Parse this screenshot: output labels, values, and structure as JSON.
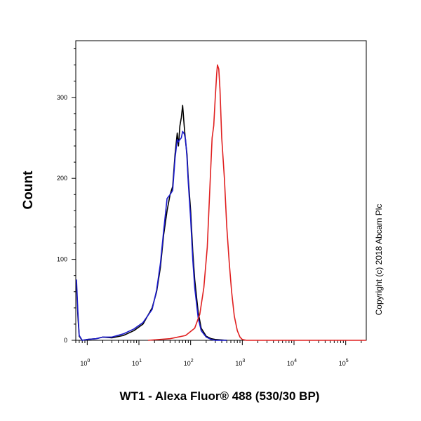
{
  "chart_data": {
    "type": "line",
    "xlabel": "WT1 - Alexa Fluor® 488 (530/30 BP)",
    "ylabel": "Count",
    "x_scale": "log",
    "xlim": [
      0.6,
      250000
    ],
    "ylim": [
      0,
      370
    ],
    "grid": false,
    "annotations": [
      "Copyright (c) 2018 Abcam Plc"
    ],
    "x_tick_labels": [
      {
        "base": "10",
        "exp": "0",
        "value": 1
      },
      {
        "base": "10",
        "exp": "1",
        "value": 10
      },
      {
        "base": "10",
        "exp": "2",
        "value": 100
      },
      {
        "base": "10",
        "exp": "3",
        "value": 1000
      },
      {
        "base": "10",
        "exp": "4",
        "value": 10000
      },
      {
        "base": "10",
        "exp": "5",
        "value": 100000
      }
    ],
    "y_ticks": [
      0,
      100,
      200,
      300
    ],
    "series": [
      {
        "color": "#000000",
        "x": [
          0.62,
          0.66,
          0.7,
          0.8,
          1,
          1.5,
          2,
          3,
          5,
          8,
          12,
          18,
          22,
          26,
          30,
          35,
          40,
          45,
          50,
          55,
          58,
          62,
          66,
          70,
          75,
          80,
          85,
          90,
          100,
          110,
          120,
          140,
          160,
          200,
          250,
          300,
          500
        ],
        "y": [
          68,
          30,
          5,
          0,
          1,
          2,
          4,
          3,
          6,
          12,
          20,
          40,
          60,
          90,
          130,
          160,
          180,
          190,
          230,
          256,
          240,
          265,
          275,
          290,
          265,
          245,
          230,
          200,
          160,
          110,
          75,
          35,
          15,
          5,
          2,
          1,
          0
        ]
      },
      {
        "color": "#1a1acc",
        "x": [
          0.62,
          0.66,
          0.7,
          0.8,
          1,
          1.5,
          2,
          3,
          5,
          8,
          12,
          18,
          22,
          26,
          30,
          35,
          40,
          45,
          50,
          55,
          58,
          62,
          66,
          70,
          75,
          80,
          85,
          90,
          100,
          110,
          120,
          140,
          160,
          200,
          250,
          300,
          500
        ],
        "y": [
          75,
          35,
          6,
          0,
          1,
          2,
          4,
          4,
          8,
          14,
          22,
          38,
          62,
          95,
          135,
          175,
          180,
          185,
          225,
          248,
          245,
          248,
          250,
          258,
          255,
          248,
          225,
          195,
          150,
          100,
          65,
          28,
          12,
          4,
          1,
          0,
          0
        ]
      },
      {
        "color": "#e02020",
        "x": [
          15,
          40,
          80,
          120,
          150,
          180,
          210,
          240,
          260,
          280,
          300,
          320,
          330,
          350,
          370,
          400,
          450,
          500,
          560,
          620,
          700,
          800,
          900,
          1000,
          1200,
          1500,
          2000,
          5000,
          20000,
          100000,
          250000
        ],
        "y": [
          0,
          2,
          6,
          15,
          32,
          65,
          115,
          200,
          250,
          265,
          300,
          330,
          340,
          335,
          310,
          250,
          200,
          140,
          95,
          60,
          30,
          12,
          4,
          1,
          0,
          0,
          0,
          0,
          0,
          0,
          0
        ]
      }
    ]
  }
}
